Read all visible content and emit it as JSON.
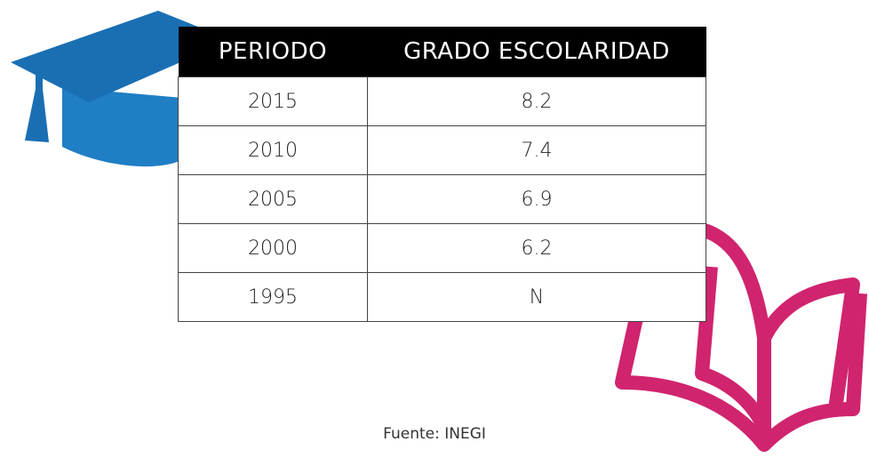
{
  "table": {
    "header": [
      "PERIODO",
      "GRADO ESCOLARIDAD"
    ],
    "rows": [
      [
        "2015",
        "8.2"
      ],
      [
        "2010",
        "7.4"
      ],
      [
        "2005",
        "6.9"
      ],
      [
        "2000",
        "6.2"
      ],
      [
        "1995",
        "N"
      ]
    ]
  },
  "footer": {
    "source": "Fuente: INEGI"
  }
}
